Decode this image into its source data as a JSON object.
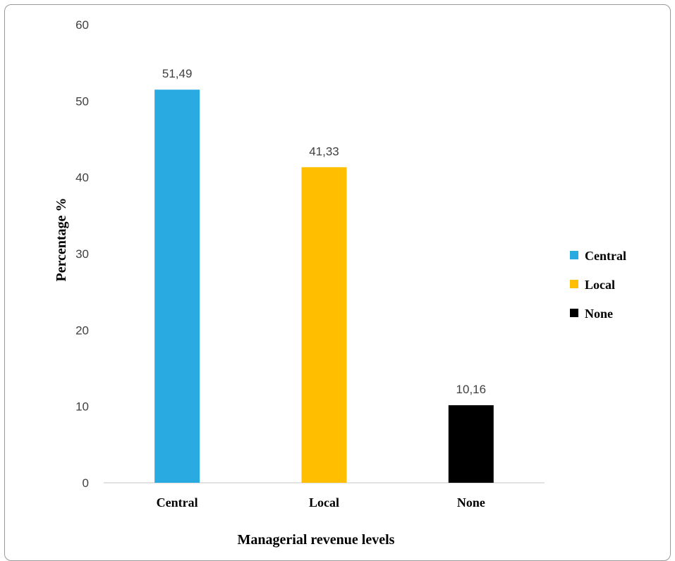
{
  "chart_data": {
    "type": "bar",
    "title": "",
    "xlabel": "Managerial revenue levels",
    "ylabel": "Percentage %",
    "categories": [
      "Central",
      "Local",
      "None"
    ],
    "values": [
      51.49,
      41.33,
      10.16
    ],
    "data_labels": [
      "51,49",
      "41,33",
      "10,16"
    ],
    "colors": [
      "#29abe2",
      "#ffbf00",
      "#000000"
    ],
    "ylim": [
      0,
      60
    ],
    "yticks": [
      0,
      10,
      20,
      30,
      40,
      50,
      60
    ],
    "grid": false,
    "legend": {
      "position": "right",
      "entries": [
        "Central",
        "Local",
        "None"
      ]
    }
  }
}
